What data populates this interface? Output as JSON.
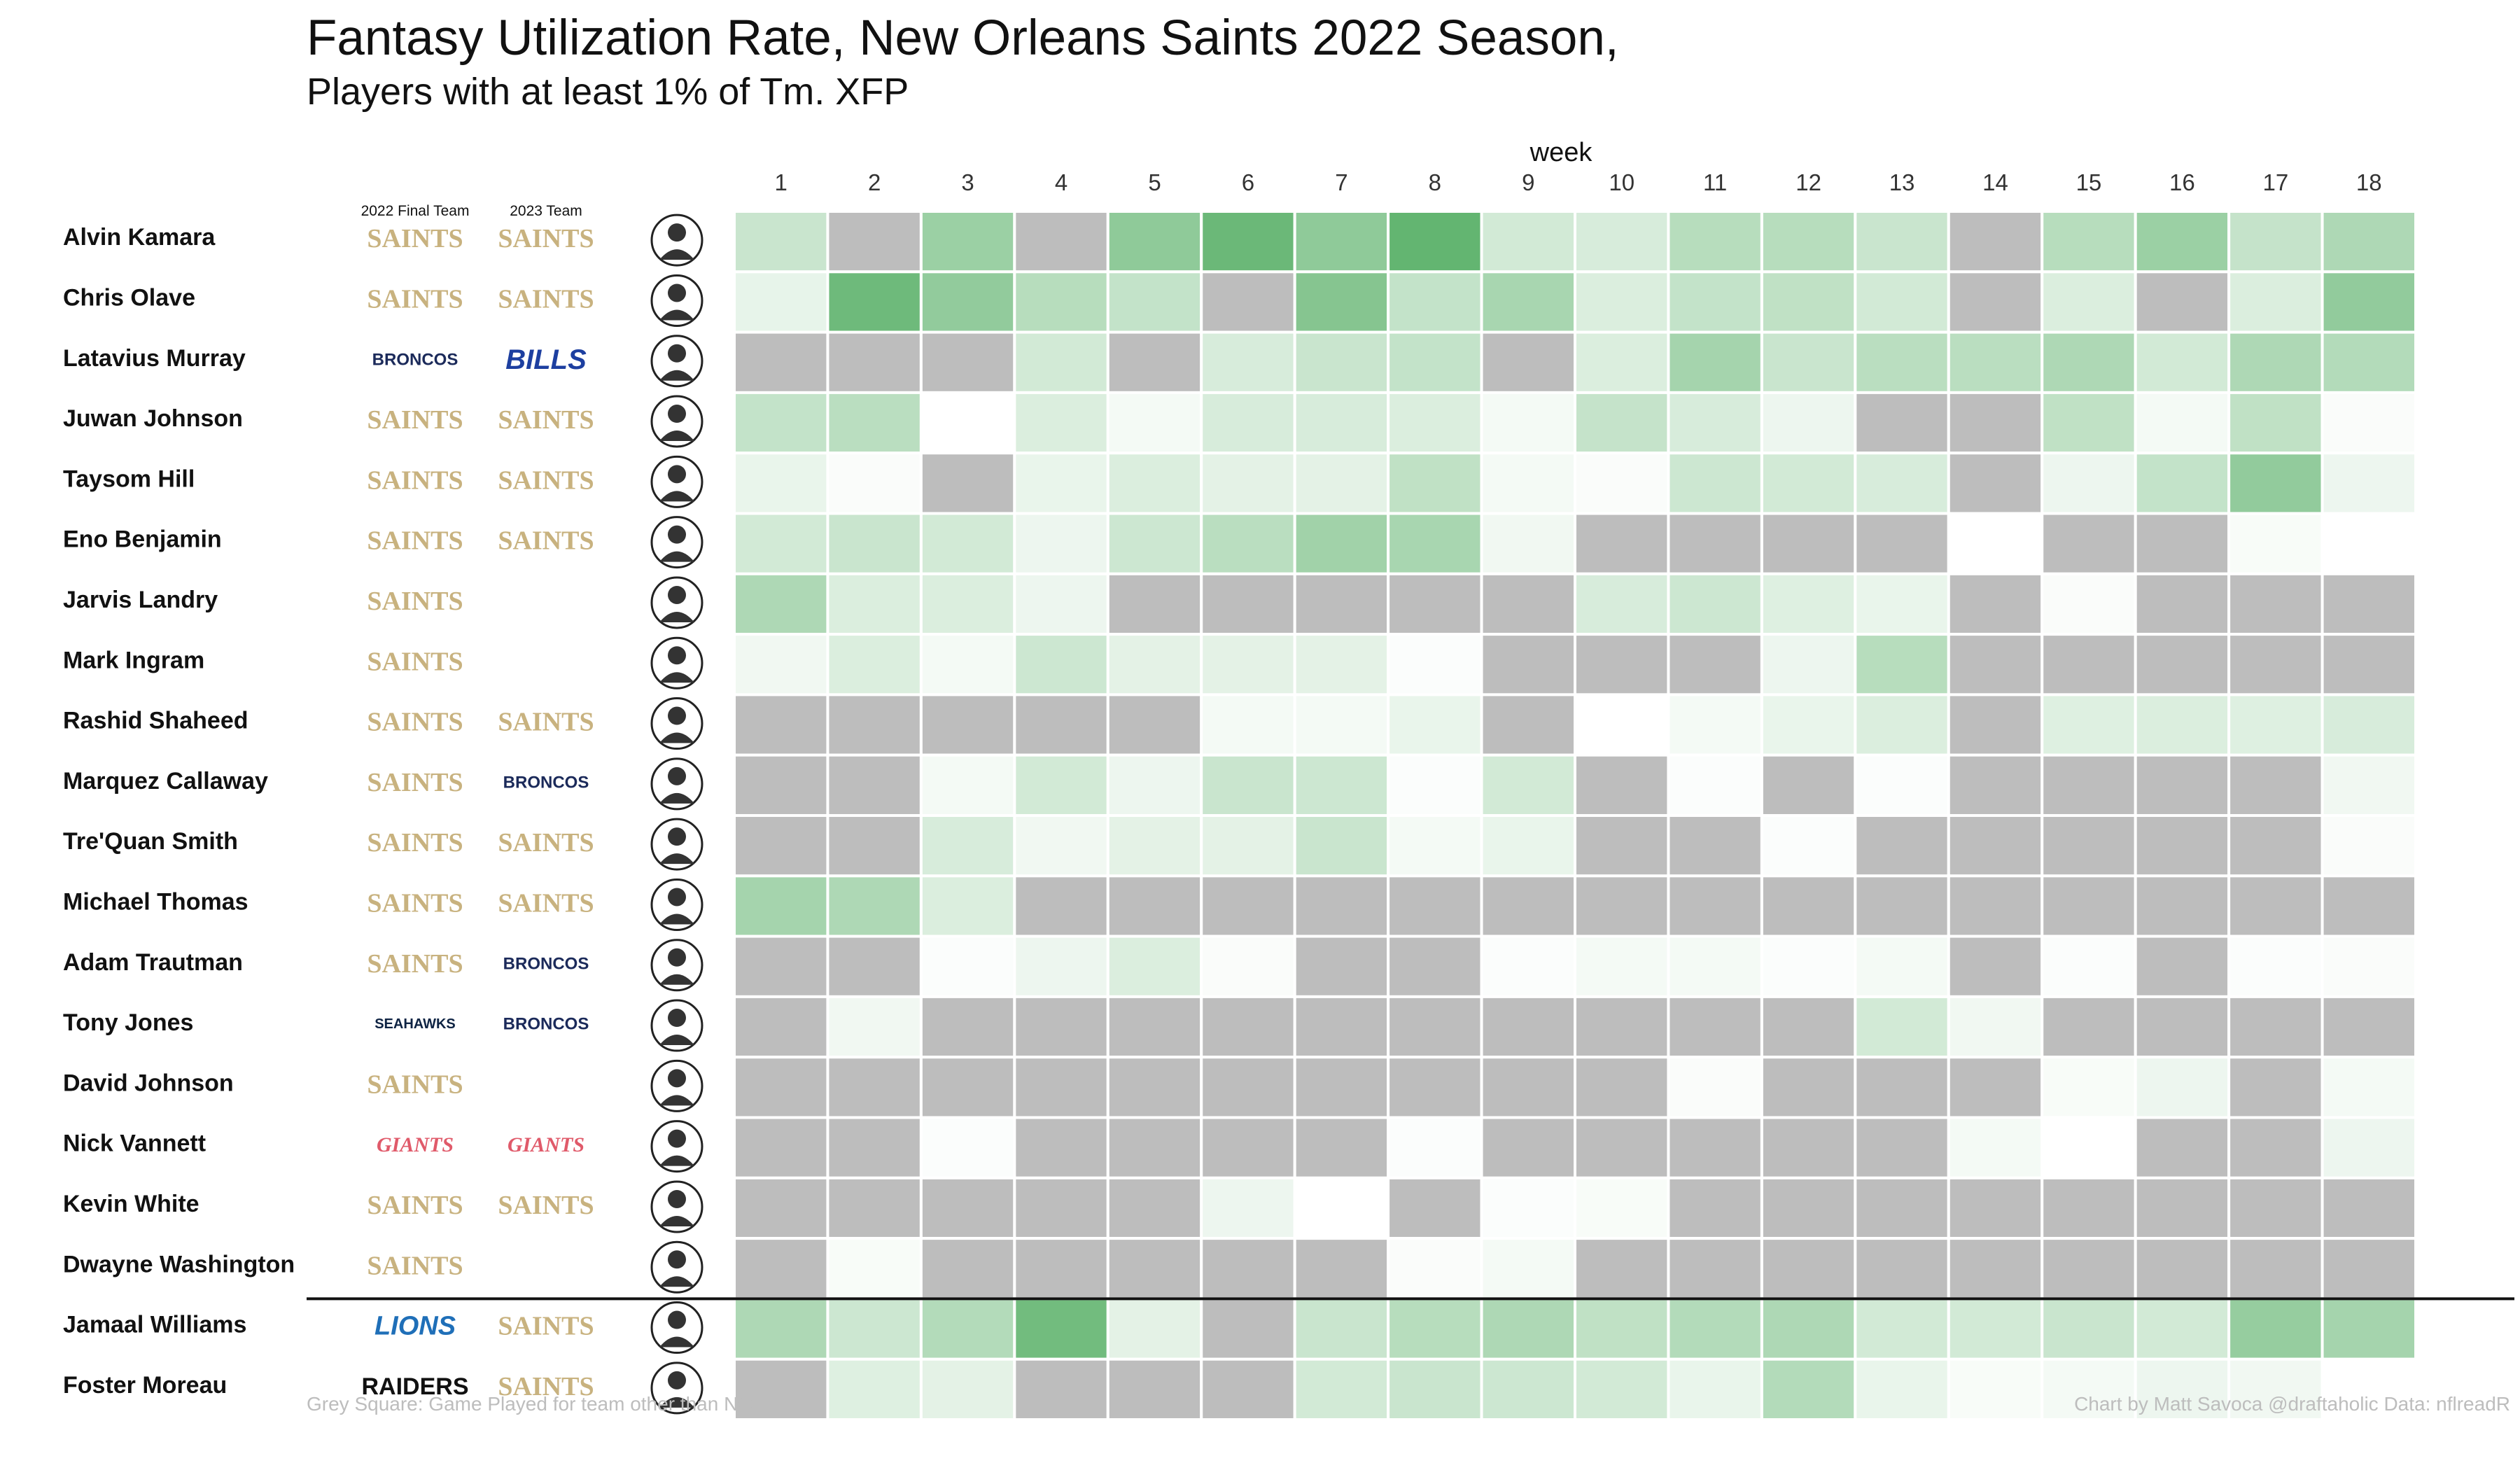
{
  "title": "Fantasy Utilization Rate, New Orleans Saints 2022 Season,",
  "subtitle": "Players with at least 1% of Tm. XFP",
  "footer": {
    "note": "Grey Square: Game Played for team other than NO",
    "credit": "Chart by Matt Savoca    @draftaholic    Data: nflreadR"
  },
  "colors": {
    "grey_other_team": "#bdbdbd",
    "low": "#ffffff",
    "high": "#4aa95a",
    "saints_gold": "#c8b27f"
  },
  "chart_data": {
    "type": "heatmap",
    "xlabel": "week",
    "weeks": [
      1,
      2,
      3,
      4,
      5,
      6,
      7,
      8,
      9,
      10,
      11,
      12,
      13,
      14,
      15,
      16,
      17,
      18
    ],
    "col_headers": {
      "final_team": "2022 Final Team",
      "next_team": "2023 Team"
    },
    "scale_note": "values are relative utilization intensity 0–1; \"G\" = played for another team; null = no game",
    "players": [
      {
        "name": "Alvin Kamara",
        "team_2022": "SAINTS",
        "team_2023": "SAINTS",
        "values": [
          0.3,
          "G",
          0.55,
          "G",
          0.62,
          0.82,
          0.62,
          0.86,
          0.25,
          0.22,
          0.4,
          0.4,
          0.3,
          "G",
          0.4,
          0.55,
          0.32,
          0.45
        ]
      },
      {
        "name": "Chris Olave",
        "team_2022": "SAINTS",
        "team_2023": "SAINTS",
        "values": [
          0.13,
          0.8,
          0.6,
          0.4,
          0.33,
          "G",
          0.67,
          0.33,
          0.48,
          0.2,
          0.33,
          0.35,
          0.25,
          "G",
          0.2,
          "G",
          0.2,
          0.6
        ]
      },
      {
        "name": "Latavius Murray",
        "team_2022": "BRONCOS",
        "team_2023": "BILLS",
        "values": [
          "G",
          "G",
          "G",
          0.25,
          "G",
          0.22,
          0.3,
          0.33,
          "G",
          0.2,
          0.5,
          0.3,
          0.38,
          0.38,
          0.45,
          0.25,
          0.45,
          0.42
        ]
      },
      {
        "name": "Juwan Johnson",
        "team_2022": "SAINTS",
        "team_2023": "SAINTS",
        "values": [
          0.33,
          0.38,
          0.0,
          0.2,
          0.06,
          0.22,
          0.22,
          0.2,
          0.06,
          0.32,
          0.22,
          0.1,
          "G",
          "G",
          0.35,
          0.06,
          0.35,
          0.03
        ]
      },
      {
        "name": "Taysom Hill",
        "team_2022": "SAINTS",
        "team_2023": "SAINTS",
        "values": [
          0.12,
          0.03,
          "G",
          0.12,
          0.2,
          0.15,
          0.15,
          0.35,
          0.06,
          0.03,
          0.28,
          0.25,
          0.22,
          "G",
          0.1,
          0.33,
          0.6,
          0.1
        ]
      },
      {
        "name": "Eno Benjamin",
        "team_2022": "SAINTS",
        "team_2023": "SAINTS",
        "values": [
          0.25,
          0.3,
          0.25,
          0.1,
          0.28,
          0.38,
          0.52,
          0.48,
          0.08,
          "G",
          "G",
          "G",
          "G",
          0.0,
          "G",
          "G",
          0.04,
          0.0
        ]
      },
      {
        "name": "Jarvis Landry",
        "team_2022": "SAINTS",
        "team_2023": "",
        "values": [
          0.45,
          0.2,
          0.2,
          0.1,
          "G",
          "G",
          "G",
          "G",
          "G",
          0.22,
          0.28,
          0.18,
          0.12,
          "G",
          0.03,
          "G",
          "G",
          "G"
        ]
      },
      {
        "name": "Mark Ingram",
        "team_2022": "SAINTS",
        "team_2023": "",
        "values": [
          0.08,
          0.2,
          0.06,
          0.28,
          0.15,
          0.15,
          0.15,
          0.02,
          "G",
          "G",
          "G",
          0.1,
          0.4,
          "G",
          "G",
          "G",
          "G",
          "G"
        ]
      },
      {
        "name": "Rashid Shaheed",
        "team_2022": "SAINTS",
        "team_2023": "SAINTS",
        "values": [
          "G",
          "G",
          "G",
          "G",
          "G",
          0.06,
          0.06,
          0.12,
          "G",
          0.0,
          0.06,
          0.12,
          0.2,
          "G",
          0.18,
          0.2,
          0.18,
          0.22
        ]
      },
      {
        "name": "Marquez Callaway",
        "team_2022": "SAINTS",
        "team_2023": "BRONCOS",
        "values": [
          "G",
          "G",
          0.06,
          0.25,
          0.1,
          0.3,
          0.28,
          0.02,
          0.25,
          "G",
          0.02,
          "G",
          0.02,
          "G",
          "G",
          "G",
          "G",
          0.08
        ]
      },
      {
        "name": "Tre'Quan Smith",
        "team_2022": "SAINTS",
        "team_2023": "SAINTS",
        "values": [
          "G",
          "G",
          0.22,
          0.08,
          0.15,
          0.15,
          0.3,
          0.06,
          0.12,
          "G",
          "G",
          0.02,
          "G",
          "G",
          "G",
          "G",
          "G",
          0.03
        ]
      },
      {
        "name": "Michael Thomas",
        "team_2022": "SAINTS",
        "team_2023": "SAINTS",
        "values": [
          0.5,
          0.45,
          0.2,
          "G",
          "G",
          "G",
          "G",
          "G",
          "G",
          "G",
          "G",
          "G",
          "G",
          "G",
          "G",
          "G",
          "G",
          "G"
        ]
      },
      {
        "name": "Adam Trautman",
        "team_2022": "SAINTS",
        "team_2023": "BRONCOS",
        "values": [
          "G",
          "G",
          0.02,
          0.1,
          0.2,
          0.03,
          "G",
          "G",
          0.02,
          0.06,
          0.06,
          0.02,
          0.06,
          "G",
          0.02,
          "G",
          0.02,
          0.03
        ]
      },
      {
        "name": "Tony Jones",
        "team_2022": "SEAHAWKS",
        "team_2023": "BRONCOS",
        "values": [
          "G",
          0.08,
          "G",
          "G",
          "G",
          "G",
          "G",
          "G",
          "G",
          "G",
          "G",
          "G",
          0.25,
          0.08,
          "G",
          "G",
          "G",
          "G"
        ]
      },
      {
        "name": "David Johnson",
        "team_2022": "SAINTS",
        "team_2023": "",
        "values": [
          "G",
          "G",
          "G",
          "G",
          "G",
          "G",
          "G",
          "G",
          "G",
          "G",
          0.03,
          "G",
          "G",
          "G",
          0.04,
          0.1,
          "G",
          0.06
        ]
      },
      {
        "name": "Nick Vannett",
        "team_2022": "GIANTS",
        "team_2023": "GIANTS",
        "values": [
          "G",
          "G",
          0.02,
          "G",
          "G",
          "G",
          "G",
          0.02,
          "G",
          "G",
          "G",
          "G",
          "G",
          0.06,
          0.0,
          "G",
          "G",
          0.1
        ]
      },
      {
        "name": "Kevin White",
        "team_2022": "SAINTS",
        "team_2023": "SAINTS",
        "values": [
          "G",
          "G",
          "G",
          "G",
          "G",
          0.1,
          0.0,
          "G",
          0.02,
          0.04,
          "G",
          "G",
          "G",
          "G",
          "G",
          "G",
          "G",
          "G"
        ]
      },
      {
        "name": "Dwayne Washington",
        "team_2022": "SAINTS",
        "team_2023": "",
        "values": [
          "G",
          0.04,
          "G",
          "G",
          "G",
          "G",
          "G",
          0.03,
          0.06,
          "G",
          "G",
          "G",
          "G",
          "G",
          "G",
          "G",
          "G",
          "G"
        ]
      },
      {
        "name": "Jamaal Williams",
        "team_2022": "LIONS",
        "team_2023": "SAINTS",
        "values": [
          0.45,
          0.28,
          0.42,
          0.78,
          0.15,
          "G",
          0.3,
          0.4,
          0.45,
          0.35,
          0.42,
          0.45,
          0.25,
          0.25,
          0.3,
          0.25,
          0.58,
          0.5
        ]
      },
      {
        "name": "Foster Moreau",
        "team_2022": "RAIDERS",
        "team_2023": "SAINTS",
        "values": [
          "G",
          0.18,
          0.15,
          "G",
          "G",
          "G",
          0.25,
          0.3,
          0.28,
          0.25,
          0.12,
          0.42,
          0.12,
          0.04,
          0.06,
          0.1,
          0.08,
          0.0
        ]
      }
    ]
  }
}
